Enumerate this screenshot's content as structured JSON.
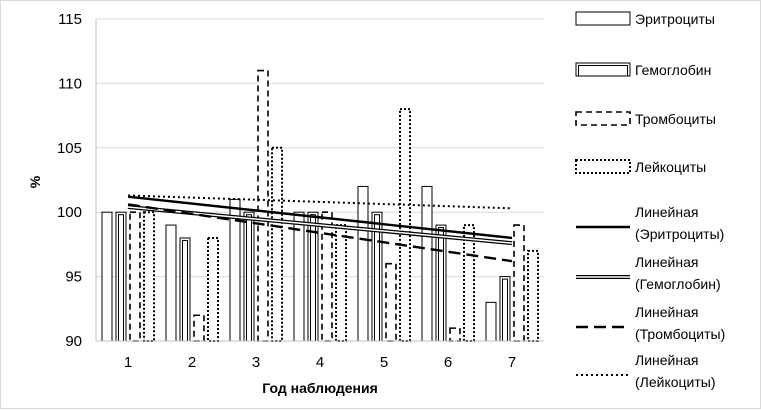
{
  "chart_data": {
    "type": "bar",
    "title": "",
    "xlabel": "Год наблюдения",
    "ylabel": "%",
    "ylim": [
      90,
      115
    ],
    "yticks": [
      "90",
      "95",
      "100",
      "105",
      "110",
      "115"
    ],
    "categories": [
      "1",
      "2",
      "3",
      "4",
      "5",
      "6",
      "7"
    ],
    "grid": "horizontal",
    "legend_position": "right",
    "series": [
      {
        "name": "Эритроциты",
        "style": "solid-outline",
        "values": [
          100,
          99,
          101,
          100,
          102,
          102,
          93
        ]
      },
      {
        "name": "Гемоглобин",
        "style": "double-outline",
        "values": [
          100,
          98,
          100,
          100,
          100,
          99,
          95
        ]
      },
      {
        "name": "Тромбоциты",
        "style": "dashed-outline",
        "values": [
          100,
          92,
          111,
          100,
          96,
          91,
          99
        ]
      },
      {
        "name": "Лейкоциты",
        "style": "dotted-outline",
        "values": [
          100,
          98,
          105,
          99,
          108,
          99,
          97
        ]
      }
    ],
    "trendlines": [
      {
        "label_line1": "Линейная",
        "label_line2": "(Эритроциты)",
        "style": "solid",
        "start": 101.2,
        "end": 98.0
      },
      {
        "label_line1": "Линейная",
        "label_line2": "(Гемоглобин)",
        "style": "double",
        "start": 100.4,
        "end": 97.6
      },
      {
        "label_line1": "Линейная",
        "label_line2": "(Тромбоциты)",
        "style": "dashed",
        "start": 100.6,
        "end": 96.2
      },
      {
        "label_line1": "Линейная",
        "label_line2": "(Лейкоциты)",
        "style": "dotted",
        "start": 101.3,
        "end": 100.3
      }
    ],
    "colors": {
      "ink": "#000000",
      "grid": "#d9d9d9",
      "axis": "#bfbfbf"
    }
  }
}
